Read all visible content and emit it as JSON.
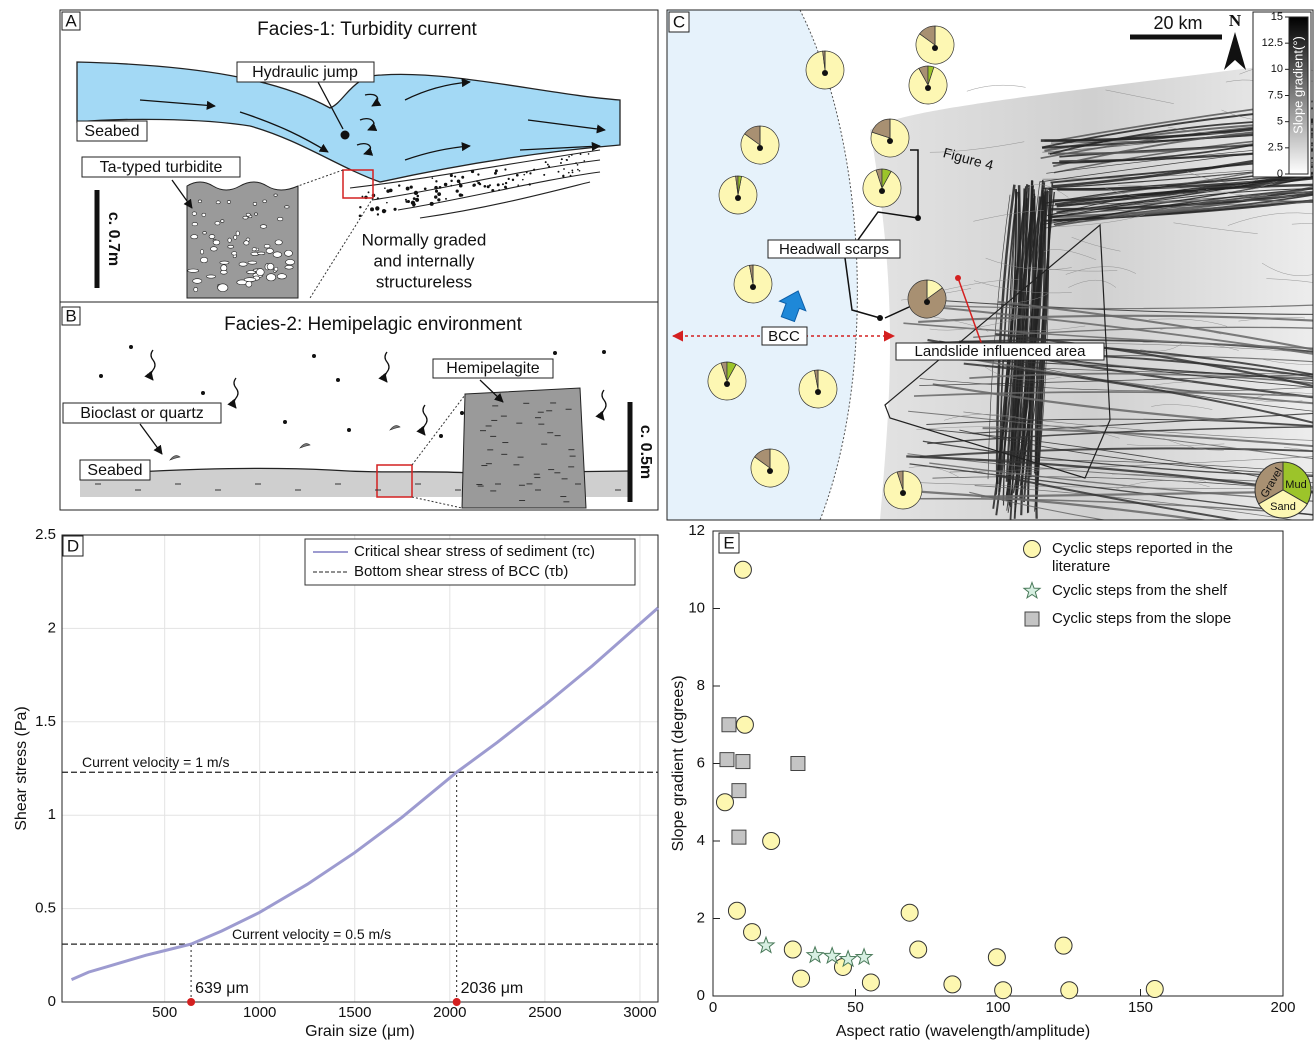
{
  "panel_a": {
    "label": "A",
    "title": "Facies-1: Turbidity current",
    "hydraulic_jump": "Hydraulic jump",
    "seabed": "Seabed",
    "turbidite": "Ta-typed turbidite",
    "scale": "c. 0.7m",
    "note": [
      "Normally graded",
      "and internally",
      "structureless"
    ]
  },
  "panel_b": {
    "label": "B",
    "title": "Facies-2: Hemipelagic environment",
    "hemipelagite": "Hemipelagite",
    "bioclast": "Bioclast or quartz",
    "seabed": "Seabed",
    "scale": "c. 0.5m"
  },
  "panel_c": {
    "label": "C",
    "scale": "20 km",
    "north": "N",
    "figure4": "Figure 4",
    "headwall": "Headwall scarps",
    "bcc": "BCC",
    "landslide": "Landslide influenced area",
    "colorbar_title": "Slope gradient(°)",
    "colorbar_ticks": [
      15,
      12.5,
      10,
      7.5,
      5,
      2.5,
      0
    ],
    "pie_legend": [
      "Gravel",
      "Mud",
      "Sand"
    ],
    "pie_colors": {
      "gravel": "#a89072",
      "mud": "#9cc42a",
      "sand": "#fdf7b3"
    },
    "pies": [
      {
        "gravel": 15,
        "mud": 0,
        "sand": 85
      },
      {
        "gravel": 2,
        "mud": 0,
        "sand": 98
      },
      {
        "gravel": 8,
        "mud": 5,
        "sand": 87
      },
      {
        "gravel": 15,
        "mud": 0,
        "sand": 85
      },
      {
        "gravel": 20,
        "mud": 0,
        "sand": 80
      },
      {
        "gravel": 5,
        "mud": 8,
        "sand": 87
      },
      {
        "gravel": 2,
        "mud": 3,
        "sand": 95
      },
      {
        "gravel": 3,
        "mud": 0,
        "sand": 97
      },
      {
        "gravel": 85,
        "mud": 0,
        "sand": 15
      },
      {
        "gravel": 5,
        "mud": 8,
        "sand": 87
      },
      {
        "gravel": 3,
        "mud": 0,
        "sand": 97
      },
      {
        "gravel": 15,
        "mud": 0,
        "sand": 85
      },
      {
        "gravel": 5,
        "mud": 0,
        "sand": 95
      }
    ]
  },
  "chart_data": [
    {
      "type": "line",
      "panel": "D",
      "xlabel": "Grain size (μm)",
      "ylabel": "Shear stress (Pa)",
      "xlim": [
        -40,
        3095
      ],
      "ylim": [
        0,
        2.5
      ],
      "xticks": [
        500,
        1000,
        1500,
        2000,
        2500,
        3000
      ],
      "yticks": [
        0,
        0.5,
        1,
        1.5,
        2,
        2.5
      ],
      "grid": true,
      "legend": "top-right",
      "series": [
        {
          "name": "Critical shear stress of sediment (τc)",
          "color": "#9d9bd0",
          "x": [
            10,
            100,
            200,
            300,
            400,
            500,
            639,
            800,
            1000,
            1250,
            1500,
            1750,
            2036,
            2250,
            2500,
            2750,
            3095
          ],
          "values": [
            0.12,
            0.16,
            0.19,
            0.22,
            0.25,
            0.275,
            0.31,
            0.38,
            0.48,
            0.63,
            0.8,
            0.99,
            1.23,
            1.39,
            1.59,
            1.8,
            2.11
          ]
        }
      ],
      "hline_name": "Bottom shear stress of BCC (τb)",
      "hline_color": "#222",
      "hlines": [
        {
          "value": 1.23,
          "label": "Current velocity = 1 m/s"
        },
        {
          "value": 0.31,
          "label": "Current velocity = 0.5 m/s"
        }
      ],
      "markers": [
        {
          "x": 639,
          "label": "639 μm"
        },
        {
          "x": 2036,
          "label": "2036 μm"
        }
      ],
      "marker_color": "#d42020"
    },
    {
      "type": "scatter",
      "panel": "E",
      "xlabel": "Aspect ratio (wavelength/amplitude)",
      "ylabel": "Slope gradient (degrees)",
      "xlim": [
        0,
        200
      ],
      "ylim": [
        0,
        12
      ],
      "xticks": [
        0,
        50,
        100,
        150,
        200
      ],
      "yticks": [
        0,
        2,
        4,
        6,
        8,
        10,
        12
      ],
      "grid": false,
      "legend": "top-right",
      "series": [
        {
          "name": "Cyclic steps reported in the literature",
          "marker": "circle",
          "color": "#fdf7b0",
          "x": [
            4.2,
            10.5,
            11.2,
            20.4,
            8.4,
            13.7,
            28,
            30.9,
            45.6,
            55.4,
            69,
            72,
            84,
            99.6,
            101.8,
            123,
            125,
            155
          ],
          "values": [
            5,
            11,
            7,
            4,
            2.2,
            1.65,
            1.2,
            0.45,
            0.75,
            0.35,
            2.15,
            1.2,
            0.3,
            1,
            0.15,
            1.3,
            0.15,
            0.18
          ]
        },
        {
          "name": "Cyclic steps from the shelf",
          "marker": "star",
          "color": "#d7efe2",
          "x": [
            18.6,
            35.8,
            41.8,
            47.4,
            53
          ],
          "values": [
            1.3,
            1.05,
            1.03,
            0.95,
            1
          ]
        },
        {
          "name": "Cyclic steps from the slope",
          "marker": "square",
          "color": "#c4c4c4",
          "x": [
            5.6,
            4.9,
            10.5,
            9.1,
            9.1,
            29.8
          ],
          "values": [
            7,
            6.1,
            6.05,
            5.3,
            4.1,
            6
          ]
        }
      ]
    }
  ]
}
